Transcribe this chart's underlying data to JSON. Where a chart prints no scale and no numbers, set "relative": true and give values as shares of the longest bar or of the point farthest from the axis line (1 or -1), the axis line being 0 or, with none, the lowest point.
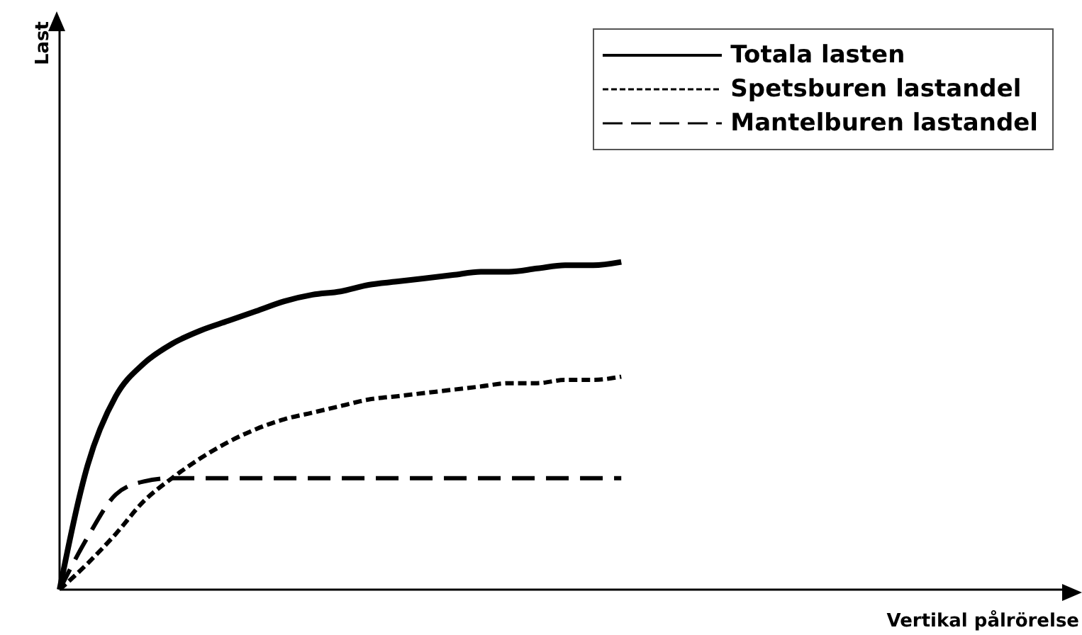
{
  "chart_data": {
    "type": "line",
    "relative": true,
    "xlabel": "Vertikal pålrörelse",
    "annotations": [
      "Last"
    ],
    "legend": "top right",
    "grid": false,
    "marker": "none",
    "categories": [
      null,
      null,
      null,
      null,
      null,
      null,
      null,
      null,
      null,
      null,
      null,
      null,
      null,
      null,
      null,
      null,
      null,
      null,
      null,
      null,
      null,
      null,
      null,
      null,
      null,
      null,
      null,
      null,
      null,
      null,
      null,
      null,
      null,
      null,
      null,
      null,
      null
    ],
    "series": [
      {
        "name": "Totala lasten",
        "color": "#000000",
        "line_style": "solid",
        "values": [
          0,
          0.38,
          0.59,
          0.69,
          0.75,
          0.79,
          0.82,
          0.85,
          0.88,
          0.9,
          0.91,
          0.93,
          0.94,
          0.95,
          0.96,
          0.97,
          0.97,
          0.98,
          0.99,
          0.99,
          1,
          null,
          null,
          null,
          null,
          null,
          null,
          null,
          null,
          null,
          null,
          null,
          null,
          null,
          null,
          null,
          null
        ]
      },
      {
        "name": "Spetsburen lastandel",
        "color": "#000000",
        "line_style": "dotted",
        "values": [
          0,
          0.08,
          0.17,
          0.27,
          0.34,
          0.4,
          0.45,
          0.49,
          0.52,
          0.54,
          0.56,
          0.58,
          0.59,
          0.6,
          0.61,
          0.62,
          0.63,
          0.63,
          0.64,
          0.64,
          0.65,
          null,
          null,
          null,
          null,
          null,
          null,
          null,
          null,
          null,
          null,
          null,
          null,
          null,
          null,
          null,
          null
        ]
      },
      {
        "name": "Mantelburen lastandel",
        "color": "#000000",
        "line_style": "dashed",
        "values": [
          0,
          0.16,
          0.29,
          0.33,
          0.34,
          0.34,
          0.34,
          0.34,
          0.34,
          0.34,
          0.34,
          0.34,
          0.34,
          0.34,
          0.34,
          0.34,
          0.34,
          0.34,
          0.34,
          0.34,
          0.34,
          null,
          null,
          null,
          null,
          null,
          null,
          null,
          null,
          null,
          null,
          null,
          null,
          null,
          null,
          null,
          null
        ]
      }
    ]
  }
}
